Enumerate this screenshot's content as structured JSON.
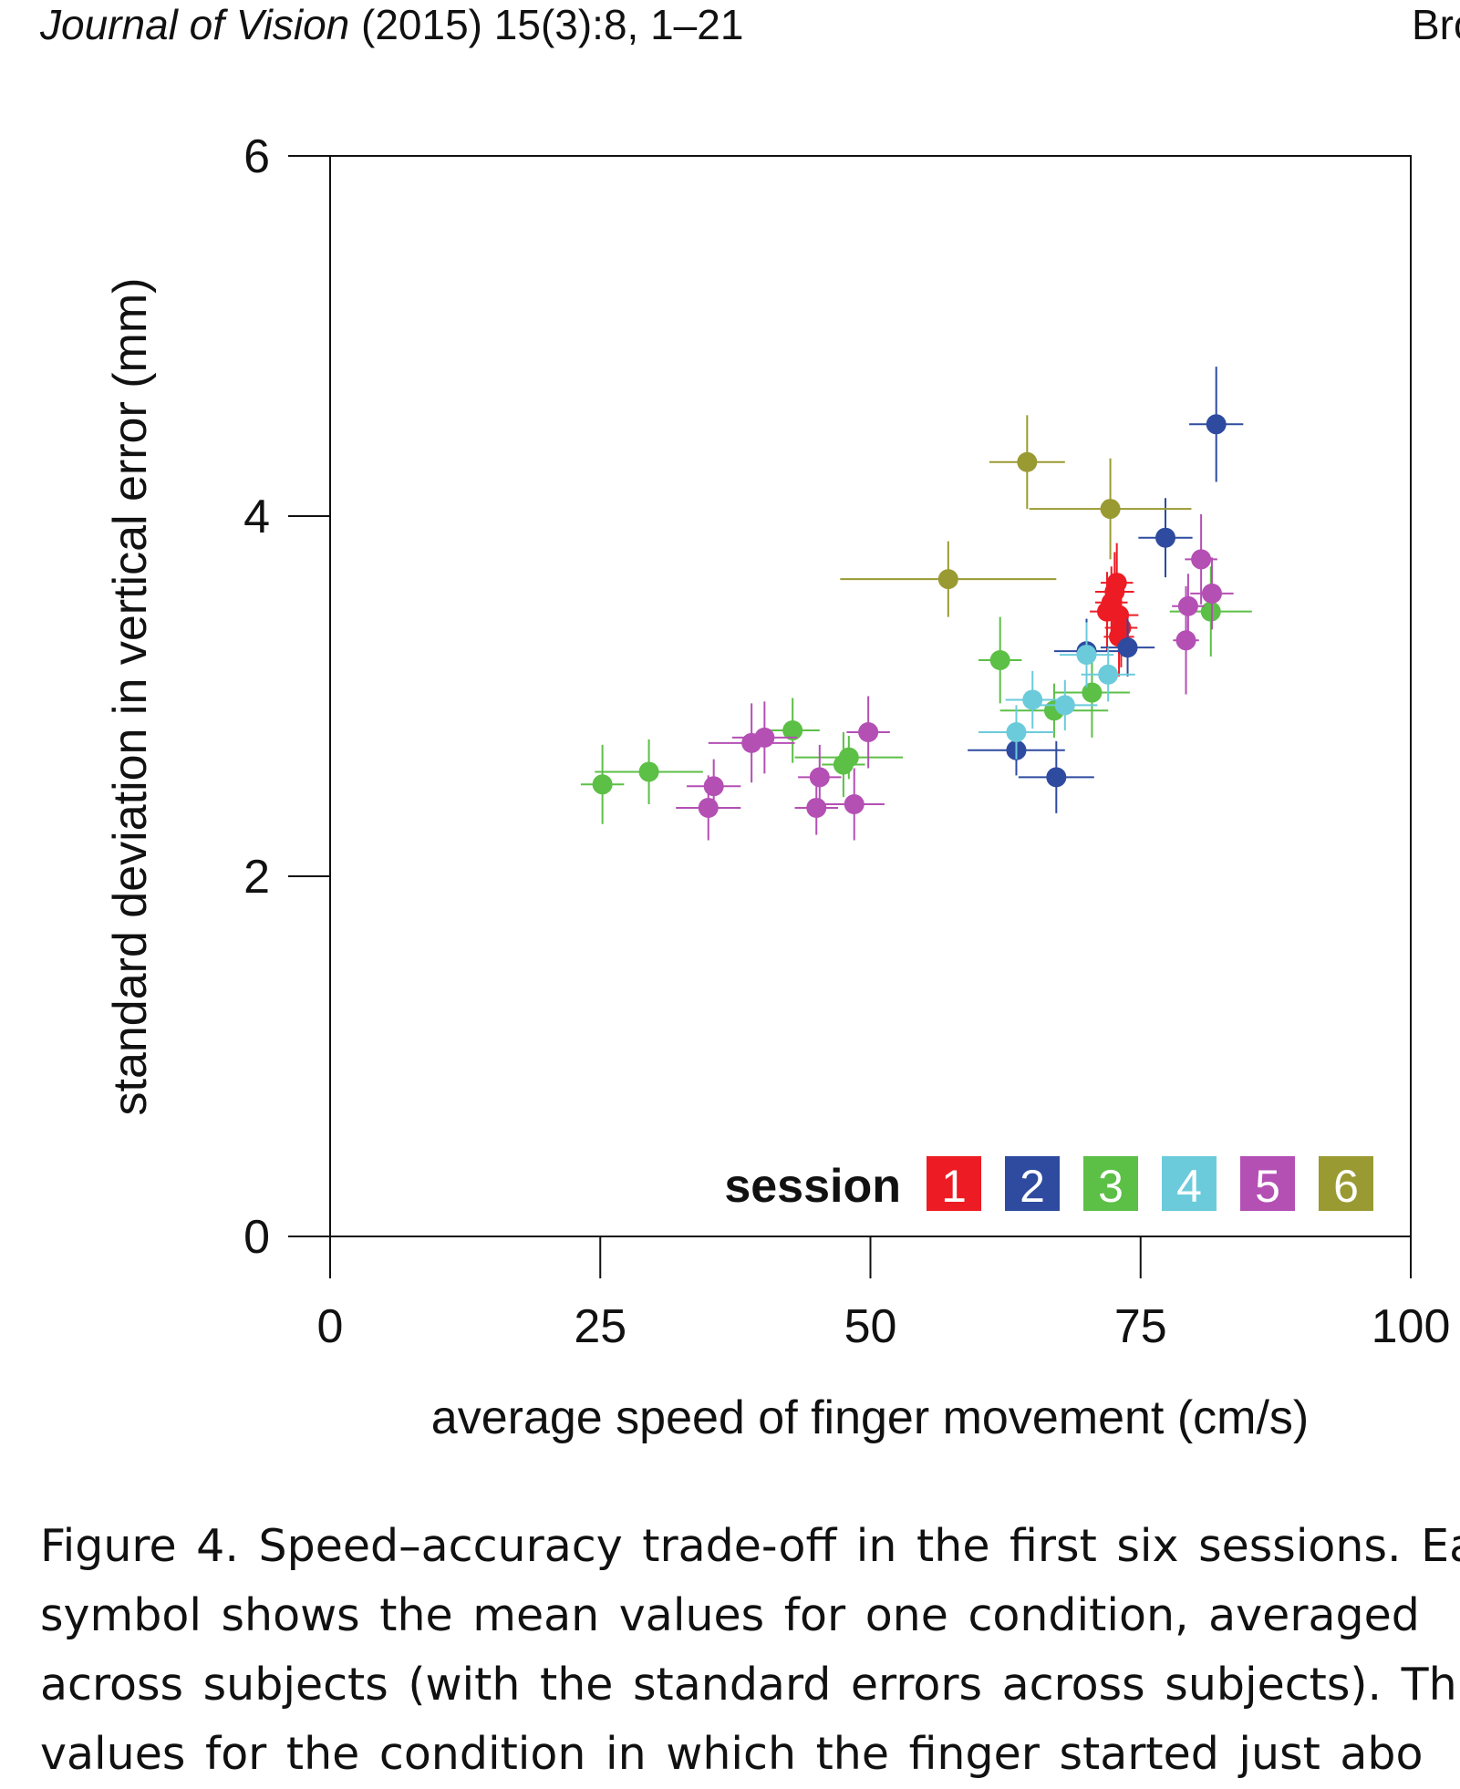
{
  "header": {
    "journal": "Journal of Vision",
    "citation": "(2015) 15(3):8, 1–21",
    "author_fragment": "Bro"
  },
  "chart_data": {
    "type": "scatter",
    "title": "",
    "xlabel": "average speed of finger movement (cm/s)",
    "ylabel": "standard deviation in vertical error (mm)",
    "xlim": [
      0,
      100
    ],
    "ylim": [
      0,
      6
    ],
    "xticks": [
      0,
      25,
      50,
      75,
      100
    ],
    "yticks": [
      0,
      2,
      4,
      6
    ],
    "grid": false,
    "error_bars": true,
    "legend": {
      "title": "session",
      "placement": "bottom-right"
    },
    "series": [
      {
        "name": "1",
        "color": "#ed1c24",
        "points": [
          {
            "x": 72.8,
            "y": 3.63,
            "xerr": 1.5,
            "yerr": 0.22
          },
          {
            "x": 72.6,
            "y": 3.58,
            "xerr": 1.8,
            "yerr": 0.22
          },
          {
            "x": 72.3,
            "y": 3.52,
            "xerr": 1.5,
            "yerr": 0.2
          },
          {
            "x": 71.9,
            "y": 3.47,
            "xerr": 1.6,
            "yerr": 0.22
          },
          {
            "x": 73.0,
            "y": 3.45,
            "xerr": 1.8,
            "yerr": 0.22
          },
          {
            "x": 73.2,
            "y": 3.38,
            "xerr": 1.5,
            "yerr": 0.22
          },
          {
            "x": 73.0,
            "y": 3.33,
            "xerr": 1.4,
            "yerr": 0.22
          }
        ]
      },
      {
        "name": "2",
        "color": "#2e4ba0",
        "points": [
          {
            "x": 82.0,
            "y": 4.51,
            "xerr": 2.5,
            "yerr": 0.32
          },
          {
            "x": 77.3,
            "y": 3.88,
            "xerr": 2.5,
            "yerr": 0.22
          },
          {
            "x": 73.8,
            "y": 3.27,
            "xerr": 2.5,
            "yerr": 0.16
          },
          {
            "x": 70.0,
            "y": 3.25,
            "xerr": 3.0,
            "yerr": 0.18
          },
          {
            "x": 63.5,
            "y": 2.7,
            "xerr": 4.5,
            "yerr": 0.14
          },
          {
            "x": 67.2,
            "y": 2.55,
            "xerr": 3.5,
            "yerr": 0.2
          }
        ]
      },
      {
        "name": "3",
        "color": "#5cbf46",
        "points": [
          {
            "x": 25.2,
            "y": 2.51,
            "xerr": 2.0,
            "yerr": 0.22
          },
          {
            "x": 29.5,
            "y": 2.58,
            "xerr": 5.0,
            "yerr": 0.18
          },
          {
            "x": 42.8,
            "y": 2.81,
            "xerr": 2.5,
            "yerr": 0.18
          },
          {
            "x": 47.5,
            "y": 2.62,
            "xerr": 2.0,
            "yerr": 0.18
          },
          {
            "x": 48.0,
            "y": 2.66,
            "xerr": 5.0,
            "yerr": 0.12
          },
          {
            "x": 62.0,
            "y": 3.2,
            "xerr": 2.0,
            "yerr": 0.24
          },
          {
            "x": 67.0,
            "y": 2.92,
            "xerr": 5.0,
            "yerr": 0.15
          },
          {
            "x": 70.5,
            "y": 3.02,
            "xerr": 3.5,
            "yerr": 0.25
          },
          {
            "x": 81.5,
            "y": 3.47,
            "xerr": 3.8,
            "yerr": 0.25
          }
        ]
      },
      {
        "name": "4",
        "color": "#6bcbdb",
        "points": [
          {
            "x": 63.5,
            "y": 2.8,
            "xerr": 3.5,
            "yerr": 0.15
          },
          {
            "x": 65.0,
            "y": 2.98,
            "xerr": 2.5,
            "yerr": 0.16
          },
          {
            "x": 68.0,
            "y": 2.95,
            "xerr": 3.0,
            "yerr": 0.14
          },
          {
            "x": 70.0,
            "y": 3.23,
            "xerr": 2.5,
            "yerr": 0.18
          },
          {
            "x": 72.0,
            "y": 3.12,
            "xerr": 2.5,
            "yerr": 0.15
          }
        ]
      },
      {
        "name": "5",
        "color": "#b44fb4",
        "points": [
          {
            "x": 35.5,
            "y": 2.5,
            "xerr": 2.5,
            "yerr": 0.15
          },
          {
            "x": 35.0,
            "y": 2.38,
            "xerr": 3.0,
            "yerr": 0.18
          },
          {
            "x": 39.0,
            "y": 2.74,
            "xerr": 4.0,
            "yerr": 0.22
          },
          {
            "x": 40.2,
            "y": 2.77,
            "xerr": 3.0,
            "yerr": 0.2
          },
          {
            "x": 45.3,
            "y": 2.55,
            "xerr": 2.0,
            "yerr": 0.18
          },
          {
            "x": 45.0,
            "y": 2.38,
            "xerr": 2.0,
            "yerr": 0.15
          },
          {
            "x": 48.5,
            "y": 2.4,
            "xerr": 2.8,
            "yerr": 0.2
          },
          {
            "x": 49.8,
            "y": 2.8,
            "xerr": 2.0,
            "yerr": 0.2
          },
          {
            "x": 80.6,
            "y": 3.76,
            "xerr": 1.5,
            "yerr": 0.25
          },
          {
            "x": 81.6,
            "y": 3.57,
            "xerr": 2.0,
            "yerr": 0.2
          },
          {
            "x": 79.4,
            "y": 3.5,
            "xerr": 1.5,
            "yerr": 0.18
          },
          {
            "x": 79.2,
            "y": 3.31,
            "xerr": 1.2,
            "yerr": 0.3
          }
        ]
      },
      {
        "name": "6",
        "color": "#9a9a33",
        "points": [
          {
            "x": 64.5,
            "y": 4.3,
            "xerr": 3.5,
            "yerr": 0.26
          },
          {
            "x": 72.2,
            "y": 4.04,
            "xerr": 7.5,
            "yerr": 0.28
          },
          {
            "x": 57.2,
            "y": 3.65,
            "xerr": 10.0,
            "yerr": 0.21
          }
        ]
      }
    ]
  },
  "caption": {
    "lines": [
      "Figure 4. Speed–accuracy trade-off in the first six sessions. Ea",
      "symbol shows the mean values for one condition, averaged",
      "across subjects (with the standard errors across subjects). Th",
      "values for the condition in which the finger started just abo"
    ]
  }
}
